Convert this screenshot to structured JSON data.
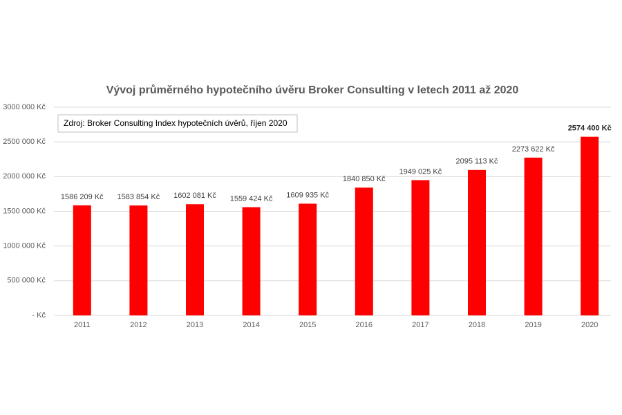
{
  "chart_data": {
    "type": "bar",
    "title": "Vývoj průměrného hypotečního úvěru Broker Consulting v letech 2011 až 2020",
    "annotation": "Zdroj: Broker Consulting Index hypotečních úvěrů, říjen 2020",
    "categories": [
      "2011",
      "2012",
      "2013",
      "2014",
      "2015",
      "2016",
      "2017",
      "2018",
      "2019",
      "2020"
    ],
    "values": [
      1586209,
      1583854,
      1602081,
      1559424,
      1609935,
      1840850,
      1949025,
      2095113,
      2273622,
      2574400
    ],
    "value_labels": [
      "1586 209 Kč",
      "1583 854 Kč",
      "1602 081 Kč",
      "1559 424 Kč",
      "1609 935 Kč",
      "1840 850 Kč",
      "1949 025 Kč",
      "2095 113 Kč",
      "2273 622 Kč",
      "2574 400 Kč"
    ],
    "color": "#ff0000",
    "ylim": [
      0,
      3000000
    ],
    "yticks": [
      {
        "value": 0,
        "label": "- Kč"
      },
      {
        "value": 500000,
        "label": "500 000 Kč"
      },
      {
        "value": 1000000,
        "label": "1000 000 Kč"
      },
      {
        "value": 1500000,
        "label": "1500 000 Kč"
      },
      {
        "value": 2000000,
        "label": "2000 000 Kč"
      },
      {
        "value": 2500000,
        "label": "2500 000 Kč"
      },
      {
        "value": 3000000,
        "label": "3000 000 Kč"
      }
    ],
    "grid": true
  }
}
